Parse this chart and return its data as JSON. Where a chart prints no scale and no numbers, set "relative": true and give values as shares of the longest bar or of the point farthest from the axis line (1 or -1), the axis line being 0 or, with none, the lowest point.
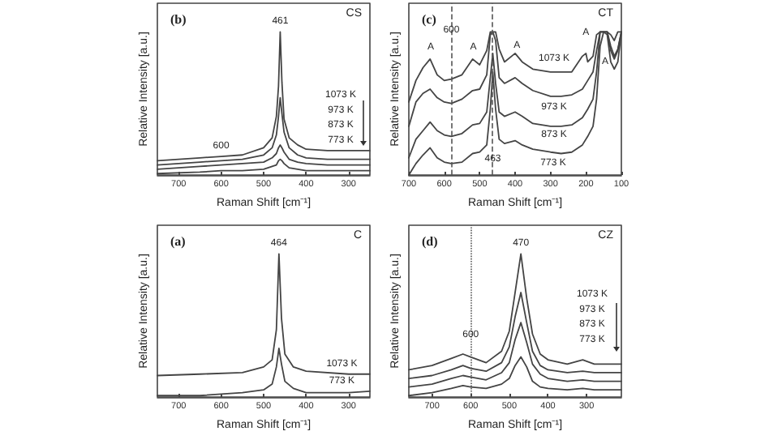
{
  "chart_data": [
    {
      "type": "line",
      "title": "(b)",
      "subtitle": "CS",
      "xlabel": "Raman Shift [cm⁻¹]",
      "ylabel": "Relative Intensity [a.u.]",
      "relative": true,
      "marker": "none",
      "xlim": [
        750,
        250
      ],
      "xticks": [
        700,
        600,
        500,
        400,
        300
      ],
      "x": [
        750,
        650,
        600,
        550,
        500,
        480,
        470,
        465,
        461,
        457,
        452,
        440,
        420,
        400,
        350,
        300,
        250
      ],
      "series": [
        {
          "color": "#444444",
          "values": [
            0.1,
            0.12,
            0.13,
            0.14,
            0.19,
            0.26,
            0.41,
            0.62,
            1,
            0.65,
            0.39,
            0.26,
            0.21,
            0.18,
            0.17,
            0.17,
            0.17
          ]
        },
        {
          "color": "#444444",
          "values": [
            0.07,
            0.09,
            0.1,
            0.11,
            0.14,
            0.19,
            0.28,
            0.41,
            0.54,
            0.43,
            0.3,
            0.19,
            0.14,
            0.12,
            0.11,
            0.11,
            0.11
          ]
        },
        {
          "color": "#444444",
          "values": [
            0.04,
            0.06,
            0.07,
            0.08,
            0.09,
            0.12,
            0.15,
            0.19,
            0.21,
            0.19,
            0.16,
            0.11,
            0.09,
            0.08,
            0.07,
            0.07,
            0.07
          ]
        },
        {
          "color": "#444444",
          "values": [
            0.01,
            0.02,
            0.03,
            0.03,
            0.04,
            0.06,
            0.07,
            0.1,
            0.11,
            0.1,
            0.08,
            0.05,
            0.04,
            0.03,
            0.03,
            0.03,
            0.03
          ]
        }
      ],
      "annotations": [
        {
          "text": "461",
          "x": 461,
          "y": 1
        },
        {
          "text": "600",
          "x": 600,
          "y": 0.13
        },
        "1073 K",
        "973 K",
        "873 K",
        "773 K"
      ]
    },
    {
      "type": "line",
      "title": "(c)",
      "subtitle": "CT",
      "xlabel": "Raman Shift [cm⁻¹]",
      "ylabel": "Relative Intensity [a.u.]",
      "relative": true,
      "marker": "none",
      "xlim": [
        700,
        100
      ],
      "xticks": [
        700,
        600,
        500,
        400,
        300,
        200,
        100
      ],
      "x": [
        700,
        680,
        660,
        640,
        620,
        600,
        580,
        550,
        520,
        500,
        480,
        470,
        463,
        455,
        445,
        430,
        400,
        380,
        350,
        300,
        270,
        240,
        210,
        195,
        180,
        170,
        160,
        150,
        140,
        130,
        120,
        110,
        100
      ],
      "series": [
        {
          "color": "#444444",
          "x": [
            700,
            680,
            660,
            640,
            620,
            600,
            580,
            550,
            520,
            500,
            480,
            470,
            463,
            455,
            445,
            430,
            400,
            380,
            350,
            300,
            270,
            240,
            210,
            200,
            195,
            180,
            170,
            160,
            150,
            140,
            130,
            120,
            110,
            100
          ],
          "values": [
            0.51,
            0.66,
            0.75,
            0.81,
            0.7,
            0.66,
            0.67,
            0.7,
            0.81,
            0.77,
            0.87,
            1,
            1,
            1,
            0.88,
            0.79,
            0.85,
            0.79,
            0.74,
            0.72,
            0.72,
            0.72,
            0.83,
            0.85,
            0.79,
            0.83,
            0.98,
            1,
            1,
            1,
            0.98,
            0.94,
            1,
            1
          ]
        },
        {
          "color": "#444444",
          "values": [
            0.34,
            0.51,
            0.57,
            0.6,
            0.54,
            0.51,
            0.5,
            0.53,
            0.59,
            0.6,
            0.7,
            0.98,
            1,
            0.94,
            0.68,
            0.64,
            0.68,
            0.64,
            0.59,
            0.55,
            0.55,
            0.56,
            0.6,
            0.66,
            0.72,
            0.87,
            1,
            1,
            1,
            0.9,
            0.83,
            0.88,
            1
          ]
        },
        {
          "color": "#444444",
          "values": [
            0.12,
            0.25,
            0.31,
            0.37,
            0.31,
            0.28,
            0.27,
            0.29,
            0.35,
            0.36,
            0.44,
            0.68,
            0.85,
            0.64,
            0.44,
            0.41,
            0.44,
            0.41,
            0.36,
            0.34,
            0.34,
            0.35,
            0.4,
            0.46,
            0.53,
            0.72,
            1,
            1,
            1,
            0.87,
            0.81,
            0.87,
            1
          ]
        },
        {
          "color": "#444444",
          "values": [
            0,
            0.08,
            0.14,
            0.19,
            0.12,
            0.09,
            0.08,
            0.09,
            0.15,
            0.16,
            0.21,
            0.46,
            0.72,
            0.46,
            0.25,
            0.22,
            0.24,
            0.21,
            0.18,
            0.16,
            0.15,
            0.16,
            0.21,
            0.27,
            0.34,
            0.53,
            0.9,
            1,
            0.98,
            0.79,
            0.74,
            0.79,
            1
          ]
        }
      ],
      "ref_lines": [
        {
          "axis": "x",
          "value": 580,
          "line_style": "dashed"
        },
        {
          "axis": "x",
          "value": 463,
          "line_style": "dashed"
        }
      ],
      "annotations": [
        {
          "text": "A",
          "x": 638,
          "y": 0.82
        },
        {
          "text": "A",
          "x": 518,
          "y": 0.82
        },
        {
          "text": "A",
          "x": 395,
          "y": 0.83
        },
        {
          "text": "A",
          "x": 200,
          "y": 0.92
        },
        {
          "text": "A",
          "x": 146,
          "y": 0.72
        },
        {
          "text": "600",
          "x": 580,
          "y": 0.94
        },
        {
          "text": "463",
          "x": 463,
          "y": 0.04
        },
        {
          "text": "1073 K",
          "x": 290,
          "y": 0.74
        },
        {
          "text": "973 K",
          "x": 290,
          "y": 0.4
        },
        {
          "text": "873 K",
          "x": 290,
          "y": 0.21
        },
        "773 K"
      ]
    },
    {
      "type": "line",
      "title": "(a)",
      "subtitle": "C",
      "xlabel": "Raman Shift [cm⁻¹]",
      "ylabel": "Relative Intensity [a.u.]",
      "relative": true,
      "marker": "none",
      "xlim": [
        750,
        250
      ],
      "xticks": [
        700,
        600,
        500,
        400,
        300
      ],
      "x": [
        750,
        650,
        550,
        500,
        480,
        470,
        464,
        458,
        450,
        430,
        400,
        300,
        250
      ],
      "series": [
        {
          "color": "#444444",
          "values": [
            0.15,
            0.16,
            0.17,
            0.21,
            0.26,
            0.47,
            1,
            0.55,
            0.3,
            0.21,
            0.18,
            0.16,
            0.16
          ]
        },
        {
          "color": "#444444",
          "values": [
            0.01,
            0.01,
            0.03,
            0.05,
            0.09,
            0.21,
            0.34,
            0.23,
            0.11,
            0.06,
            0.03,
            0.03,
            0.04
          ]
        }
      ],
      "annotations": [
        {
          "text": "464",
          "x": 464,
          "y": 1
        },
        {
          "text": "1073 K",
          "x": 316,
          "y": 0.16
        },
        {
          "text": "773 K",
          "x": 316,
          "y": 0.04
        }
      ]
    },
    {
      "type": "line",
      "title": "(d)",
      "subtitle": "CZ",
      "xlabel": "Raman Shift [cm⁻¹]",
      "ylabel": "Relative Intensity [a.u.]",
      "relative": true,
      "marker": "none",
      "xlim": [
        760,
        210
      ],
      "xticks": [
        700,
        600,
        500,
        400,
        300
      ],
      "x": [
        760,
        700,
        650,
        620,
        600,
        560,
        520,
        500,
        485,
        470,
        455,
        440,
        420,
        400,
        350,
        310,
        280,
        210
      ],
      "series": [
        {
          "color": "#444444",
          "values": [
            0.19,
            0.22,
            0.27,
            0.3,
            0.28,
            0.24,
            0.32,
            0.46,
            0.73,
            1,
            0.69,
            0.44,
            0.3,
            0.26,
            0.23,
            0.26,
            0.23,
            0.23
          ]
        },
        {
          "color": "#444444",
          "values": [
            0.13,
            0.15,
            0.19,
            0.22,
            0.2,
            0.18,
            0.24,
            0.35,
            0.56,
            0.73,
            0.52,
            0.32,
            0.22,
            0.19,
            0.17,
            0.18,
            0.17,
            0.17
          ]
        },
        {
          "color": "#444444",
          "values": [
            0.07,
            0.09,
            0.13,
            0.15,
            0.14,
            0.12,
            0.17,
            0.24,
            0.4,
            0.52,
            0.38,
            0.23,
            0.16,
            0.13,
            0.11,
            0.12,
            0.11,
            0.11
          ]
        },
        {
          "color": "#444444",
          "values": [
            0.01,
            0.03,
            0.06,
            0.08,
            0.07,
            0.06,
            0.09,
            0.13,
            0.22,
            0.28,
            0.21,
            0.11,
            0.07,
            0.06,
            0.05,
            0.06,
            0.05,
            0.05
          ]
        }
      ],
      "ref_lines": [
        {
          "axis": "x",
          "value": 600,
          "line_style": "dotted"
        }
      ],
      "annotations": [
        {
          "text": "470",
          "x": 470,
          "y": 1
        },
        {
          "text": "600",
          "x": 600,
          "y": 0.36
        },
        "1073 K",
        "973 K",
        "873 K",
        "773 K"
      ]
    }
  ]
}
